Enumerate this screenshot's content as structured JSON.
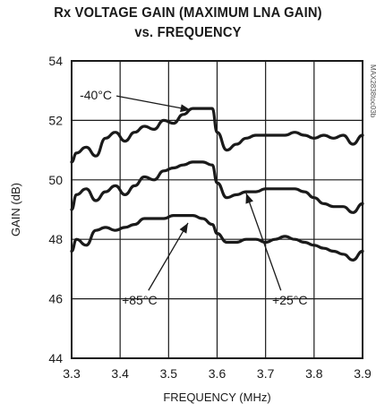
{
  "chart_data": {
    "type": "line",
    "title_line1": "Rx VOLTAGE GAIN (MAXIMUM LNA GAIN)",
    "title_line2": "vs. FREQUENCY",
    "xlabel": "FREQUENCY (MHz)",
    "ylabel": "GAIN (dB)",
    "xlim": [
      3.3,
      3.9
    ],
    "ylim": [
      44,
      54
    ],
    "x_ticks": [
      "3.3",
      "3.4",
      "3.5",
      "3.6",
      "3.7",
      "3.8",
      "3.9"
    ],
    "y_ticks": [
      "44",
      "46",
      "48",
      "50",
      "52",
      "54"
    ],
    "grid": true,
    "part_number": "MAX2838toc03b",
    "series": [
      {
        "name": "-40°C",
        "x": [
          3.3,
          3.31,
          3.33,
          3.35,
          3.37,
          3.39,
          3.41,
          3.43,
          3.45,
          3.47,
          3.49,
          3.51,
          3.53,
          3.55,
          3.57,
          3.59,
          3.6,
          3.62,
          3.64,
          3.66,
          3.68,
          3.7,
          3.72,
          3.74,
          3.76,
          3.78,
          3.8,
          3.82,
          3.84,
          3.86,
          3.88,
          3.9
        ],
        "y": [
          50.6,
          50.9,
          51.1,
          50.8,
          51.4,
          51.6,
          51.3,
          51.6,
          51.8,
          51.7,
          52.0,
          51.9,
          52.2,
          52.4,
          52.4,
          52.4,
          51.6,
          51.0,
          51.2,
          51.4,
          51.5,
          51.5,
          51.5,
          51.5,
          51.6,
          51.5,
          51.4,
          51.5,
          51.4,
          51.5,
          51.2,
          51.5
        ]
      },
      {
        "name": "+25°C",
        "x": [
          3.3,
          3.31,
          3.33,
          3.35,
          3.37,
          3.39,
          3.41,
          3.43,
          3.45,
          3.47,
          3.49,
          3.51,
          3.53,
          3.55,
          3.57,
          3.59,
          3.6,
          3.62,
          3.64,
          3.66,
          3.68,
          3.7,
          3.72,
          3.74,
          3.76,
          3.78,
          3.8,
          3.82,
          3.84,
          3.86,
          3.88,
          3.9
        ],
        "y": [
          49.0,
          49.5,
          49.7,
          49.3,
          49.6,
          49.8,
          49.5,
          49.8,
          50.1,
          50.0,
          50.3,
          50.4,
          50.5,
          50.6,
          50.6,
          50.5,
          49.9,
          49.4,
          49.5,
          49.6,
          49.6,
          49.7,
          49.7,
          49.7,
          49.7,
          49.6,
          49.4,
          49.2,
          49.1,
          49.1,
          48.9,
          49.2
        ]
      },
      {
        "name": "+85°C",
        "x": [
          3.3,
          3.31,
          3.33,
          3.35,
          3.37,
          3.39,
          3.41,
          3.43,
          3.45,
          3.47,
          3.49,
          3.51,
          3.53,
          3.55,
          3.57,
          3.59,
          3.6,
          3.62,
          3.64,
          3.66,
          3.68,
          3.7,
          3.72,
          3.74,
          3.76,
          3.78,
          3.8,
          3.82,
          3.84,
          3.86,
          3.88,
          3.9
        ],
        "y": [
          47.6,
          48.0,
          47.8,
          48.3,
          48.4,
          48.3,
          48.4,
          48.5,
          48.7,
          48.7,
          48.7,
          48.8,
          48.8,
          48.8,
          48.7,
          48.5,
          48.2,
          47.9,
          47.9,
          48.0,
          48.0,
          47.9,
          48.0,
          48.1,
          48.0,
          47.9,
          47.8,
          47.7,
          47.6,
          47.5,
          47.3,
          47.6
        ]
      }
    ],
    "annotations": [
      {
        "text": "-40°C",
        "series": "-40°C",
        "label_x": 3.35,
        "label_y": 52.7,
        "arrow_to_x": 3.545,
        "arrow_to_y": 52.35
      },
      {
        "text": "+85°C",
        "series": "+85°C",
        "label_x": 3.44,
        "label_y": 45.8,
        "arrow_to_x": 3.54,
        "arrow_to_y": 48.55
      },
      {
        "text": "+25°C",
        "series": "+25°C",
        "label_x": 3.75,
        "label_y": 45.8,
        "arrow_to_x": 3.66,
        "arrow_to_y": 49.55
      }
    ]
  }
}
